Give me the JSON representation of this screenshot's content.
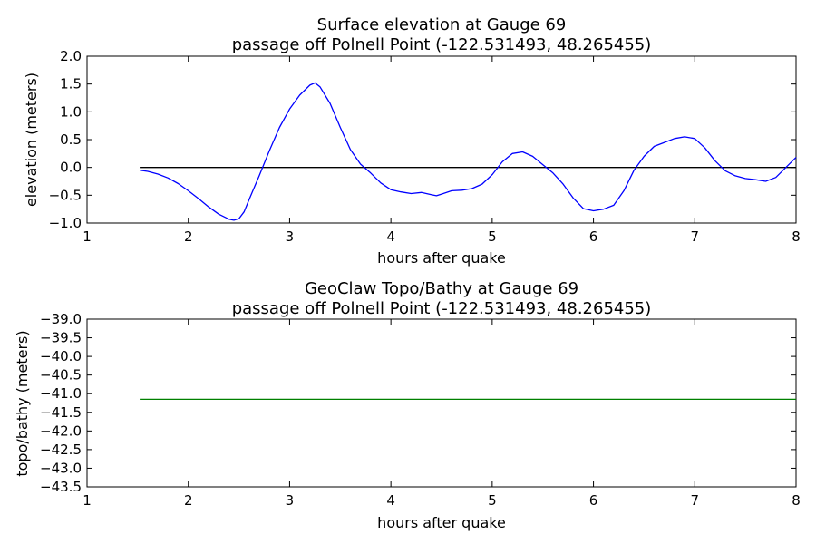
{
  "chart_data": [
    {
      "type": "line",
      "title": "Surface elevation at Gauge 69",
      "subtitle": "passage off Polnell Point  (-122.531493, 48.265455)",
      "xlabel": "hours after quake",
      "ylabel": "elevation (meters)",
      "xlim": [
        1,
        8
      ],
      "ylim": [
        -1.0,
        2.0
      ],
      "xticks": [
        "1",
        "2",
        "3",
        "4",
        "5",
        "6",
        "7",
        "8"
      ],
      "yticks": [
        "2.0",
        "1.5",
        "1.0",
        "0.5",
        "0.0",
        "−0.5",
        "−1.0"
      ],
      "grid": false,
      "reference_line": {
        "y": 0.0,
        "x": [
          1.52,
          8.0
        ],
        "color": "#000000"
      },
      "series": [
        {
          "color": "#0000ff",
          "x": [
            1.52,
            1.6,
            1.7,
            1.8,
            1.9,
            2.0,
            2.1,
            2.2,
            2.3,
            2.4,
            2.45,
            2.5,
            2.55,
            2.6,
            2.7,
            2.8,
            2.9,
            3.0,
            3.1,
            3.2,
            3.25,
            3.3,
            3.4,
            3.5,
            3.6,
            3.7,
            3.8,
            3.9,
            4.0,
            4.1,
            4.2,
            4.3,
            4.4,
            4.45,
            4.5,
            4.6,
            4.7,
            4.8,
            4.9,
            5.0,
            5.1,
            5.2,
            5.3,
            5.4,
            5.5,
            5.6,
            5.7,
            5.8,
            5.9,
            6.0,
            6.1,
            6.2,
            6.3,
            6.4,
            6.5,
            6.6,
            6.7,
            6.8,
            6.9,
            7.0,
            7.1,
            7.2,
            7.3,
            7.4,
            7.5,
            7.6,
            7.7,
            7.8,
            7.9,
            8.0
          ],
          "y": [
            -0.05,
            -0.07,
            -0.12,
            -0.19,
            -0.29,
            -0.42,
            -0.56,
            -0.71,
            -0.84,
            -0.93,
            -0.95,
            -0.92,
            -0.8,
            -0.58,
            -0.15,
            0.3,
            0.72,
            1.05,
            1.3,
            1.48,
            1.52,
            1.45,
            1.15,
            0.72,
            0.32,
            0.06,
            -0.1,
            -0.28,
            -0.4,
            -0.44,
            -0.47,
            -0.45,
            -0.49,
            -0.51,
            -0.48,
            -0.42,
            -0.41,
            -0.38,
            -0.3,
            -0.13,
            0.1,
            0.25,
            0.28,
            0.2,
            0.05,
            -0.1,
            -0.3,
            -0.55,
            -0.74,
            -0.78,
            -0.75,
            -0.68,
            -0.42,
            -0.05,
            0.2,
            0.38,
            0.45,
            0.52,
            0.55,
            0.52,
            0.35,
            0.12,
            -0.06,
            -0.15,
            -0.2,
            -0.22,
            -0.25,
            -0.18,
            0.0,
            0.18
          ]
        }
      ]
    },
    {
      "type": "line",
      "title": "GeoClaw Topo/Bathy at Gauge 69",
      "subtitle": "passage off Polnell Point  (-122.531493, 48.265455)",
      "xlabel": "hours after quake",
      "ylabel": "topo/bathy (meters)",
      "xlim": [
        1,
        8
      ],
      "ylim": [
        -43.5,
        -39.0
      ],
      "xticks": [
        "1",
        "2",
        "3",
        "4",
        "5",
        "6",
        "7",
        "8"
      ],
      "yticks": [
        "−39.0",
        "−39.5",
        "−40.0",
        "−40.5",
        "−41.0",
        "−41.5",
        "−42.0",
        "−42.5",
        "−43.0",
        "−43.5"
      ],
      "grid": false,
      "series": [
        {
          "color": "#008000",
          "x": [
            1.52,
            8.0
          ],
          "y": [
            -41.15,
            -41.15
          ]
        }
      ]
    }
  ]
}
